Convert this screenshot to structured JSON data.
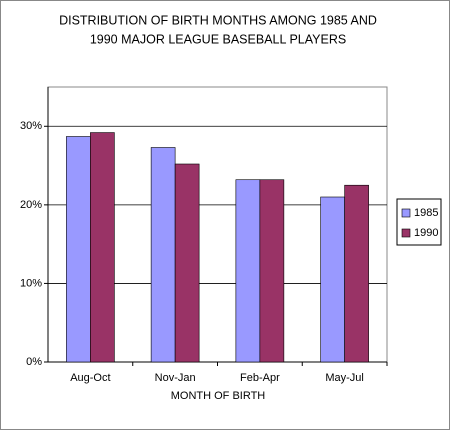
{
  "chart_data": {
    "type": "bar",
    "title": [
      "DISTRIBUTION  OF BIRTH MONTHS AMONG 1985 AND",
      "1990 MAJOR LEAGUE BASEBALL PLAYERS"
    ],
    "x_label": "MONTH OF BIRTH",
    "categories": [
      "Aug-Oct",
      "Nov-Jan",
      "Feb-Apr",
      "May-Jul"
    ],
    "series": [
      {
        "name": "1985",
        "color": "#9999ff",
        "values": [
          28.7,
          27.3,
          23.2,
          21.0
        ]
      },
      {
        "name": "1990",
        "color": "#993366",
        "values": [
          29.2,
          25.2,
          23.2,
          22.5
        ]
      }
    ],
    "ylim": [
      0,
      35
    ],
    "yticks": [
      {
        "value": 0,
        "label": "0%"
      },
      {
        "value": 10,
        "label": "10%"
      },
      {
        "value": 20,
        "label": "20%"
      },
      {
        "value": 30,
        "label": "30%"
      }
    ],
    "grid": true,
    "legend": "right"
  }
}
